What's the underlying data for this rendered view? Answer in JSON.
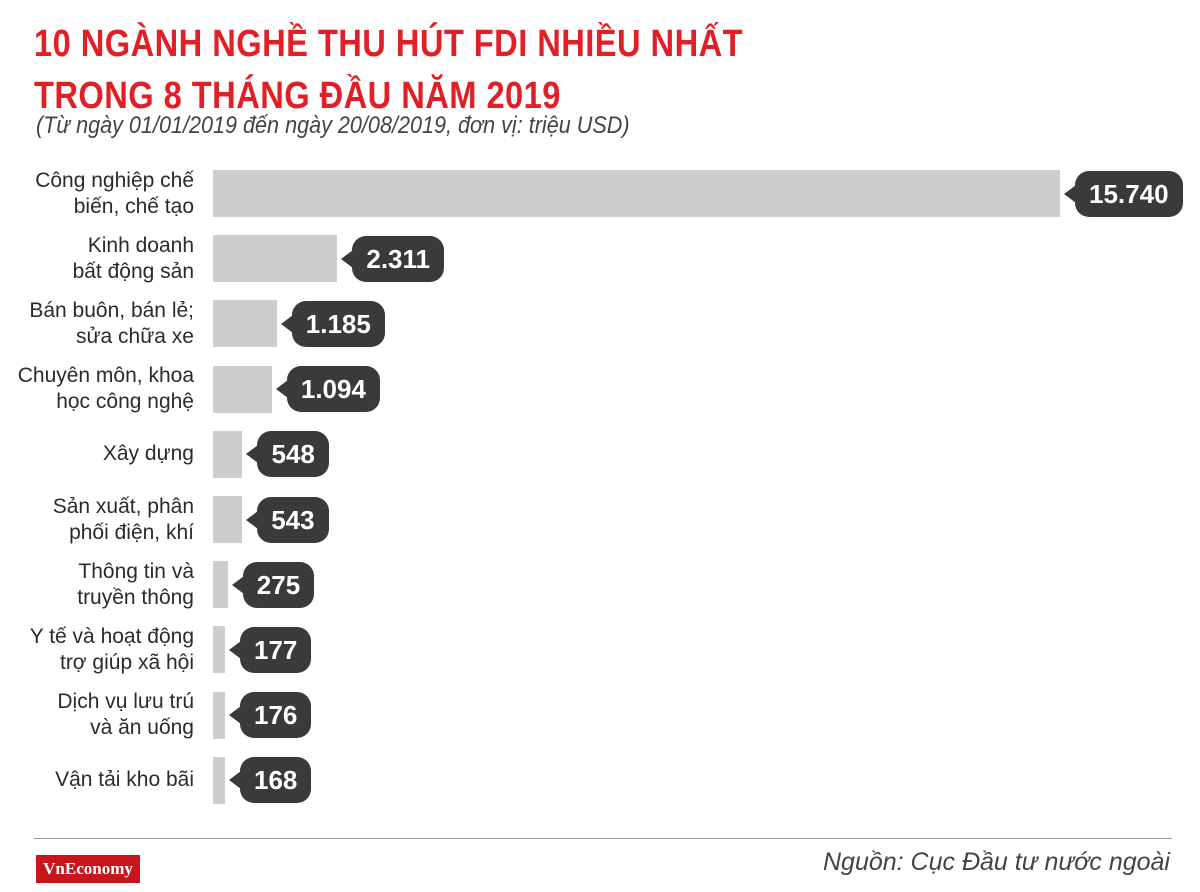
{
  "header": {
    "title_line1": "10 NGÀNH NGHỀ THU HÚT FDI NHIỀU NHẤT",
    "title_line2": "TRONG 8 THÁNG ĐẦU NĂM 2019",
    "subtitle": "(Từ ngày 01/01/2019 đến ngày 20/08/2019, đơn vị: triệu USD)"
  },
  "footer": {
    "logo": "VnEconomy",
    "source": "Nguồn: Cục Đầu tư nước ngoài"
  },
  "colors": {
    "title": "#e01f26",
    "bar": "#cdcdcd",
    "bubble": "#3a3a3a",
    "logo_bg": "#c8141b"
  },
  "chart_data": {
    "type": "bar",
    "orientation": "horizontal",
    "categories": [
      [
        "Công nghiệp chế",
        "biến, chế tạo"
      ],
      [
        "Kinh doanh",
        "bất động sản"
      ],
      [
        "Bán buôn, bán lẻ;",
        "sửa chữa xe"
      ],
      [
        "Chuyên môn, khoa",
        "học công nghệ"
      ],
      [
        "Xây dựng"
      ],
      [
        "Sản xuất, phân",
        "phối điện, khí"
      ],
      [
        "Thông tin và",
        "truyền thông"
      ],
      [
        "Y tế và hoạt động",
        "trợ giúp xã hội"
      ],
      [
        "Dịch vụ lưu trú",
        "và ăn uống"
      ],
      [
        "Vận tải kho bãi"
      ]
    ],
    "values": [
      15740,
      2311,
      1185,
      1094,
      548,
      543,
      275,
      177,
      176,
      168
    ],
    "value_labels": [
      "15.740",
      "2.311",
      "1.185",
      "1.094",
      "548",
      "543",
      "275",
      "177",
      "176",
      "168"
    ],
    "xlim": [
      0,
      15740
    ],
    "grid": false,
    "legend": "none"
  }
}
